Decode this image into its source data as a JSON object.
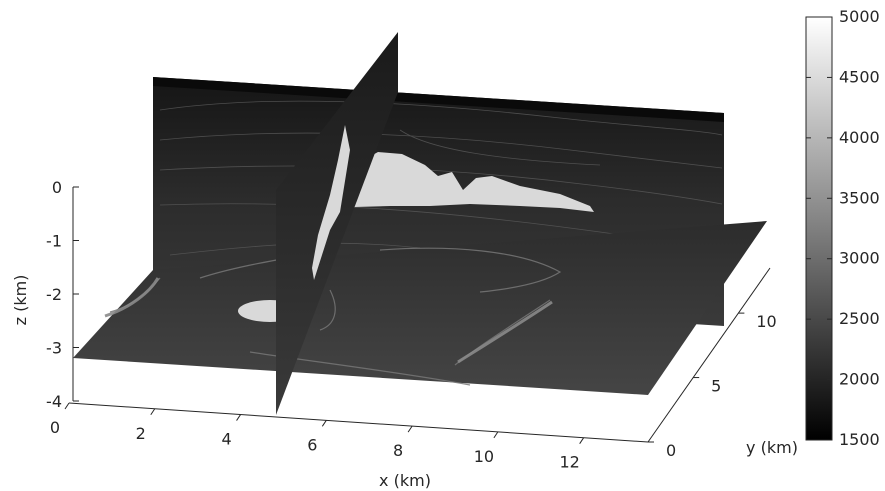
{
  "chart_data": {
    "type": "volume-slice",
    "title": "",
    "xlabel": "x (km)",
    "ylabel": "y (km)",
    "zlabel": "z (km)",
    "x_ticks": [
      "0",
      "2",
      "4",
      "6",
      "8",
      "10",
      "12"
    ],
    "y_ticks": [
      "0",
      "5",
      "10"
    ],
    "z_ticks": [
      "0",
      "-1",
      "-2",
      "-3",
      "-4"
    ],
    "xlim": [
      0,
      13.5
    ],
    "ylim": [
      0,
      13.5
    ],
    "zlim": [
      -4,
      0
    ],
    "slices": {
      "x": 5,
      "y": 13.5,
      "z": -3
    },
    "colormap": "gray",
    "colorbar": {
      "ticks": [
        "5000",
        "4500",
        "4000",
        "3500",
        "3000",
        "2500",
        "2000",
        "1500"
      ],
      "range": [
        1500,
        5000
      ]
    },
    "colors": {
      "low": "#000000",
      "high": "#ffffff",
      "salt": "#d9d9d9",
      "sediment": "#333333",
      "axes": "#262626"
    }
  }
}
